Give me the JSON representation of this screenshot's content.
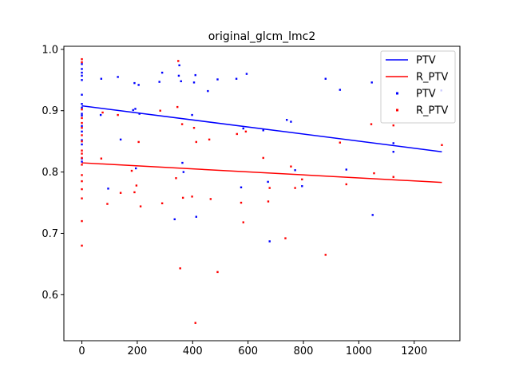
{
  "chart_data": {
    "type": "scatter",
    "title": "original_glcm_lmc2",
    "xlabel": "",
    "ylabel": "",
    "xlim": [
      -65,
      1365
    ],
    "ylim": [
      0.525,
      1.005
    ],
    "xticks": [
      0,
      200,
      400,
      600,
      800,
      1000,
      1200
    ],
    "yticks": [
      0.6,
      0.7,
      0.8,
      0.9,
      1.0
    ],
    "ytick_labels": [
      "0.6",
      "0.7",
      "0.8",
      "0.9",
      "1.0"
    ],
    "grid": false,
    "legend": {
      "placement": "top-right",
      "entries": [
        {
          "label": "PTV",
          "kind": "line",
          "color": "#0000ff"
        },
        {
          "label": "R_PTV",
          "kind": "line",
          "color": "#ff0000"
        },
        {
          "label": "PTV",
          "kind": "marker",
          "color": "#0000ff"
        },
        {
          "label": "R_PTV",
          "kind": "marker",
          "color": "#ff0000"
        }
      ]
    },
    "lines": [
      {
        "name": "PTV",
        "color": "#0000ff",
        "x": [
          0,
          1300
        ],
        "y": [
          0.908,
          0.833
        ]
      },
      {
        "name": "R_PTV",
        "color": "#ff0000",
        "x": [
          0,
          1300
        ],
        "y": [
          0.815,
          0.783
        ]
      }
    ],
    "series": [
      {
        "name": "PTV",
        "color": "#0000ff",
        "points": [
          [
            0,
            0.976
          ],
          [
            0,
            0.968
          ],
          [
            0,
            0.962
          ],
          [
            0,
            0.957
          ],
          [
            0,
            0.95
          ],
          [
            0,
            0.926
          ],
          [
            0,
            0.911
          ],
          [
            0,
            0.905
          ],
          [
            0,
            0.895
          ],
          [
            0,
            0.892
          ],
          [
            0,
            0.875
          ],
          [
            0,
            0.866
          ],
          [
            0,
            0.852
          ],
          [
            0,
            0.845
          ],
          [
            0,
            0.822
          ],
          [
            0,
            0.817
          ],
          [
            70,
            0.952
          ],
          [
            68,
            0.893
          ],
          [
            95,
            0.773
          ],
          [
            130,
            0.955
          ],
          [
            140,
            0.853
          ],
          [
            185,
            0.901
          ],
          [
            190,
            0.945
          ],
          [
            193,
            0.903
          ],
          [
            195,
            0.806
          ],
          [
            205,
            0.942
          ],
          [
            208,
            0.895
          ],
          [
            280,
            0.947
          ],
          [
            290,
            0.962
          ],
          [
            335,
            0.723
          ],
          [
            350,
            0.957
          ],
          [
            352,
            0.974
          ],
          [
            358,
            0.948
          ],
          [
            363,
            0.815
          ],
          [
            367,
            0.8
          ],
          [
            398,
            0.893
          ],
          [
            405,
            0.946
          ],
          [
            410,
            0.958
          ],
          [
            413,
            0.727
          ],
          [
            455,
            0.932
          ],
          [
            490,
            0.951
          ],
          [
            558,
            0.952
          ],
          [
            575,
            0.775
          ],
          [
            583,
            0.871
          ],
          [
            595,
            0.96
          ],
          [
            655,
            0.868
          ],
          [
            672,
            0.784
          ],
          [
            678,
            0.687
          ],
          [
            740,
            0.885
          ],
          [
            755,
            0.882
          ],
          [
            770,
            0.803
          ],
          [
            795,
            0.777
          ],
          [
            880,
            0.952
          ],
          [
            932,
            0.934
          ],
          [
            955,
            0.804
          ],
          [
            1047,
            0.946
          ],
          [
            1050,
            0.73
          ],
          [
            1125,
            0.847
          ],
          [
            1125,
            0.833
          ],
          [
            1298,
            0.933
          ]
        ]
      },
      {
        "name": "R_PTV",
        "color": "#ff0000",
        "points": [
          [
            0,
            0.984
          ],
          [
            0,
            0.979
          ],
          [
            0,
            0.902
          ],
          [
            0,
            0.888
          ],
          [
            0,
            0.88
          ],
          [
            0,
            0.872
          ],
          [
            0,
            0.86
          ],
          [
            0,
            0.85
          ],
          [
            0,
            0.835
          ],
          [
            0,
            0.83
          ],
          [
            0,
            0.823
          ],
          [
            0,
            0.812
          ],
          [
            0,
            0.795
          ],
          [
            0,
            0.785
          ],
          [
            0,
            0.772
          ],
          [
            0,
            0.757
          ],
          [
            0,
            0.72
          ],
          [
            0,
            0.68
          ],
          [
            70,
            0.822
          ],
          [
            75,
            0.897
          ],
          [
            92,
            0.748
          ],
          [
            130,
            0.893
          ],
          [
            140,
            0.766
          ],
          [
            180,
            0.802
          ],
          [
            190,
            0.767
          ],
          [
            197,
            0.778
          ],
          [
            205,
            0.849
          ],
          [
            212,
            0.744
          ],
          [
            283,
            0.9
          ],
          [
            290,
            0.749
          ],
          [
            340,
            0.79
          ],
          [
            345,
            0.906
          ],
          [
            348,
            0.981
          ],
          [
            355,
            0.643
          ],
          [
            362,
            0.878
          ],
          [
            365,
            0.758
          ],
          [
            398,
            0.76
          ],
          [
            405,
            0.872
          ],
          [
            410,
            0.554
          ],
          [
            413,
            0.849
          ],
          [
            460,
            0.853
          ],
          [
            465,
            0.756
          ],
          [
            490,
            0.637
          ],
          [
            560,
            0.862
          ],
          [
            575,
            0.75
          ],
          [
            583,
            0.718
          ],
          [
            592,
            0.866
          ],
          [
            655,
            0.823
          ],
          [
            673,
            0.752
          ],
          [
            678,
            0.774
          ],
          [
            735,
            0.692
          ],
          [
            755,
            0.809
          ],
          [
            770,
            0.774
          ],
          [
            795,
            0.788
          ],
          [
            880,
            0.665
          ],
          [
            932,
            0.848
          ],
          [
            955,
            0.78
          ],
          [
            1045,
            0.878
          ],
          [
            1055,
            0.798
          ],
          [
            1125,
            0.876
          ],
          [
            1125,
            0.792
          ],
          [
            1300,
            0.844
          ]
        ]
      }
    ]
  }
}
